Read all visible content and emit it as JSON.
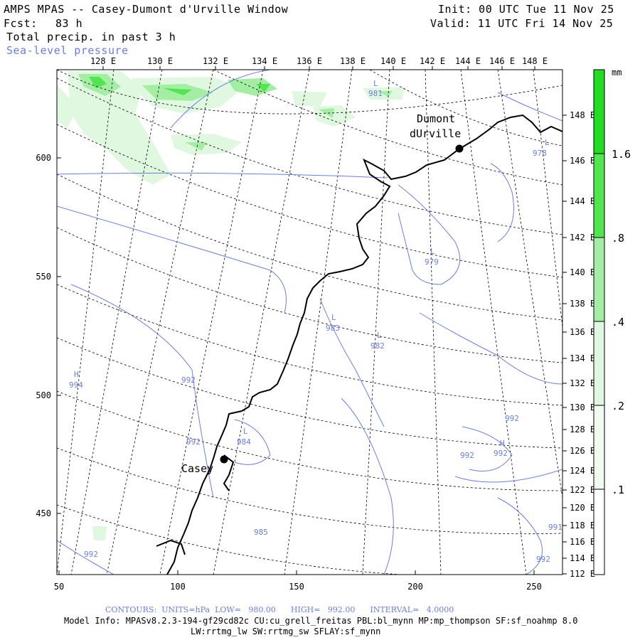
{
  "header": {
    "title": "AMPS MPAS -- Casey-Dumont d'Urville Window",
    "forecast_label": "Fcst:",
    "forecast_hours": "83 h",
    "field1": "Total precip. in past 3 h",
    "field2": "Sea-level pressure",
    "init": "Init: 00 UTC Tue 11 Nov 25",
    "valid": "Valid: 11 UTC Fri 14 Nov 25"
  },
  "colors": {
    "precip_light": "#dff8df",
    "precip_mid": "#a4eea4",
    "precip_strong": "#4fe64f",
    "precip_max": "#22dd22",
    "contour": "#6a7ee8",
    "graticule": "#000000"
  },
  "top_axis": {
    "labels": [
      "128 E",
      "130 E",
      "132 E",
      "134 E",
      "136 E",
      "138 E",
      "140 E",
      "142 E",
      "144 E",
      "146 E",
      "148 E"
    ]
  },
  "right_axis": {
    "labels": [
      "148 E",
      "146 E",
      "144 E",
      "142 E",
      "140 E",
      "138 E",
      "136 E",
      "134 E",
      "132 E",
      "130 E",
      "128 E",
      "126 E",
      "124 E",
      "122 E",
      "120 E",
      "118 E",
      "116 E",
      "114 E",
      "112 E"
    ]
  },
  "left_axis": {
    "labels": [
      "600",
      "550",
      "500",
      "450"
    ]
  },
  "bottom_axis": {
    "labels": [
      "50",
      "100",
      "150",
      "200",
      "250"
    ]
  },
  "stations": [
    {
      "name": "Dumont",
      "name2": "dUrville"
    },
    {
      "name": "Casey"
    }
  ],
  "pressure_labels": [
    {
      "kind": "L",
      "value": "981"
    },
    {
      "kind": "L",
      "value": "978"
    },
    {
      "kind": "L",
      "value": "979"
    },
    {
      "kind": "L",
      "value": "983"
    },
    {
      "kind": "L",
      "value": "982"
    },
    {
      "kind": "H",
      "value": "994"
    },
    {
      "kind": "",
      "value": "992"
    },
    {
      "kind": "",
      "value": "992"
    },
    {
      "kind": "L",
      "value": "984"
    },
    {
      "kind": "",
      "value": "985"
    },
    {
      "kind": "",
      "value": "992"
    },
    {
      "kind": "",
      "value": "992"
    },
    {
      "kind": "H",
      "value": "992"
    },
    {
      "kind": "",
      "value": "992"
    },
    {
      "kind": "",
      "value": "991"
    },
    {
      "kind": "",
      "value": "992"
    }
  ],
  "colorbar": {
    "unit": "mm",
    "levels": [
      ".1",
      ".2",
      ".4",
      ".8",
      "1.6"
    ]
  },
  "footer": {
    "contours": "CONTOURS:  UNITS=hPa  LOW=   980.00      HIGH=   992.00      INTERVAL=   4.0000",
    "model_info": "Model Info: MPASv8.2.3-194-gf29cd82c CU:cu_grell_freitas PBL:bl_mynn MP:mp_thompson SF:sf_noahmp 8.0",
    "model_info2": "LW:rrtmg_lw SW:rrtmg_sw SFLAY:sf_mynn"
  }
}
